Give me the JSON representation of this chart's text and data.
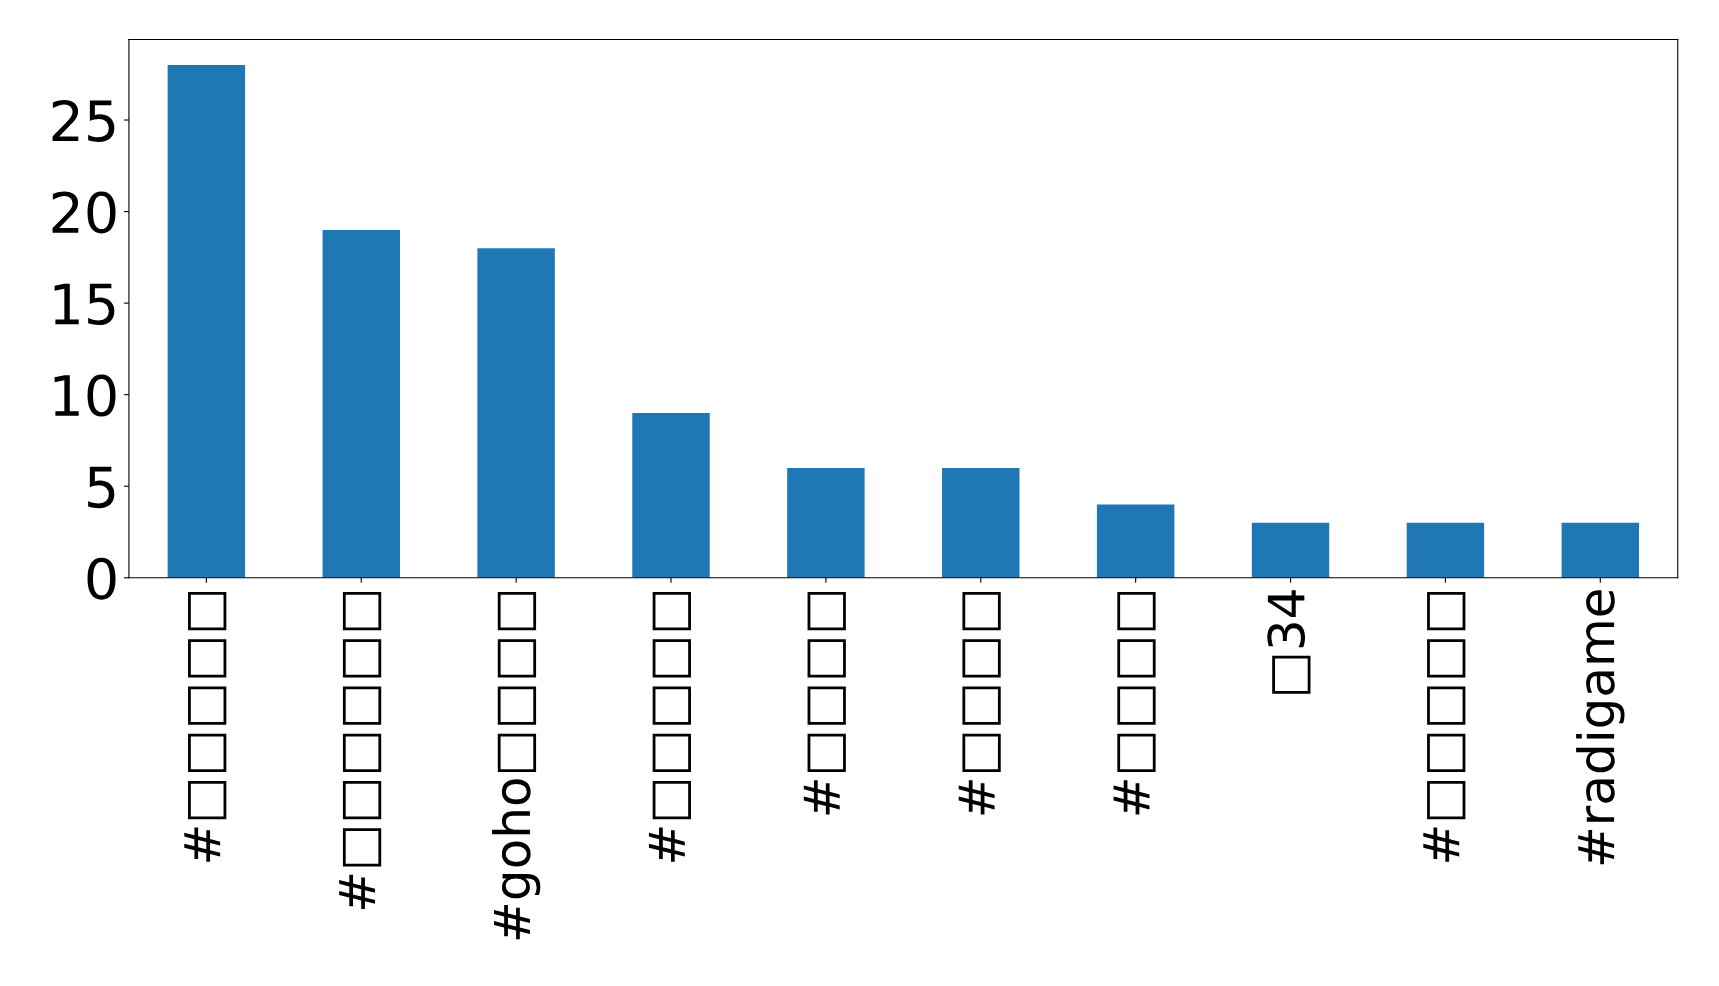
{
  "chart_data": {
    "type": "bar",
    "categories": [
      "#□□□□□",
      "#□□□□□□",
      "#goho□□□□",
      "#□□□□□",
      "#□□□□",
      "#□□□□",
      "#□□□□",
      "□34",
      "#□□□□□",
      "#radigame"
    ],
    "values": [
      28,
      19,
      18,
      9,
      6,
      6,
      4,
      3,
      3,
      3
    ],
    "color": "#1f77b4",
    "ylim": [
      0,
      29.4
    ],
    "yticks": [
      0,
      5,
      10,
      15,
      20,
      25
    ],
    "grid": false,
    "legend": false
  }
}
